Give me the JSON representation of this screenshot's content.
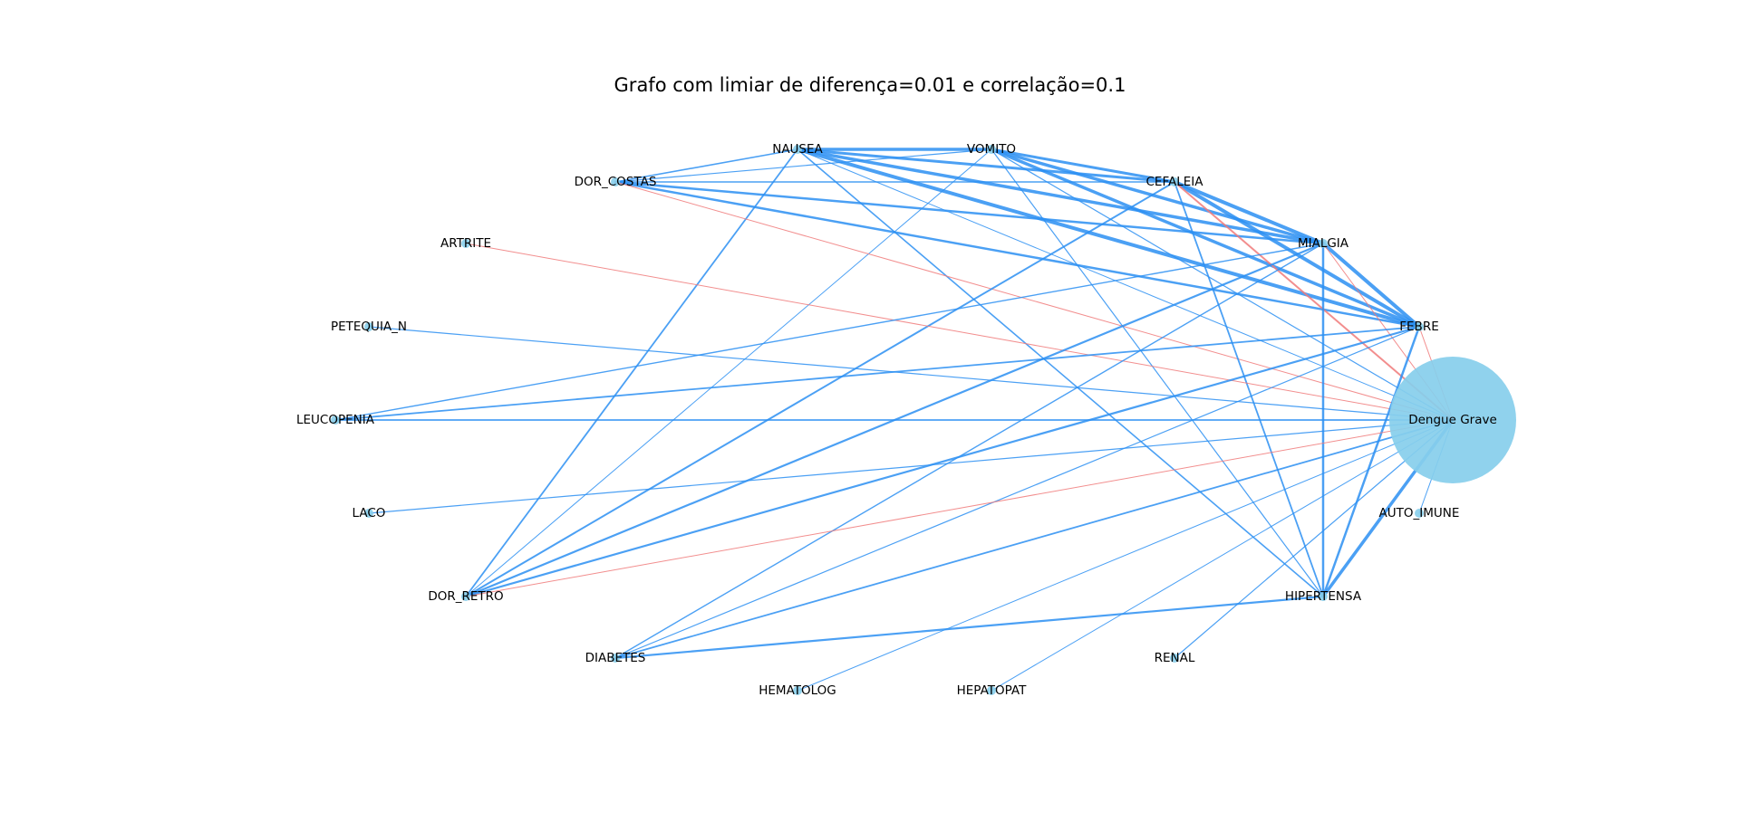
{
  "title": "Grafo com limiar de diferença=0.01 e correlação=0.1",
  "colors": {
    "positive_edge": "#2b8ff2",
    "negative_edge": "#f07a7a",
    "node": "#87ceeb"
  },
  "graph": {
    "center_node": "Dengue Grave",
    "nodes": [
      {
        "id": "NAUSEA",
        "label": "NAUSEA"
      },
      {
        "id": "VOMITO",
        "label": "VOMITO"
      },
      {
        "id": "DOR_COSTAS",
        "label": "DOR_COSTAS"
      },
      {
        "id": "CEFALEIA",
        "label": "CEFALEIA"
      },
      {
        "id": "ARTRITE",
        "label": "ARTRITE"
      },
      {
        "id": "MIALGIA",
        "label": "MIALGIA"
      },
      {
        "id": "PETEQUIA_N",
        "label": "PETEQUIA_N"
      },
      {
        "id": "FEBRE",
        "label": "FEBRE"
      },
      {
        "id": "LEUCOPENIA",
        "label": "LEUCOPENIA"
      },
      {
        "id": "Dengue Grave",
        "label": "Dengue Grave"
      },
      {
        "id": "LACO",
        "label": "LACO"
      },
      {
        "id": "AUTO_IMUNE",
        "label": "AUTO_IMUNE"
      },
      {
        "id": "DOR_RETRO",
        "label": "DOR_RETRO"
      },
      {
        "id": "HIPERTENSA",
        "label": "HIPERTENSA"
      },
      {
        "id": "DIABETES",
        "label": "DIABETES"
      },
      {
        "id": "RENAL",
        "label": "RENAL"
      },
      {
        "id": "HEMATOLOG",
        "label": "HEMATOLOG"
      },
      {
        "id": "HEPATOPAT",
        "label": "HEPATOPAT"
      }
    ],
    "edges": [
      {
        "source": "NAUSEA",
        "target": "VOMITO",
        "sign": "positive",
        "weight": 3.5
      },
      {
        "source": "NAUSEA",
        "target": "DOR_COSTAS",
        "sign": "positive",
        "weight": 1.6
      },
      {
        "source": "NAUSEA",
        "target": "CEFALEIA",
        "sign": "positive",
        "weight": 3
      },
      {
        "source": "NAUSEA",
        "target": "MIALGIA",
        "sign": "positive",
        "weight": 3.5
      },
      {
        "source": "NAUSEA",
        "target": "FEBRE",
        "sign": "positive",
        "weight": 4
      },
      {
        "source": "NAUSEA",
        "target": "DOR_RETRO",
        "sign": "positive",
        "weight": 1.8
      },
      {
        "source": "NAUSEA",
        "target": "HIPERTENSA",
        "sign": "positive",
        "weight": 1.6
      },
      {
        "source": "NAUSEA",
        "target": "Dengue Grave",
        "sign": "positive",
        "weight": 1
      },
      {
        "source": "VOMITO",
        "target": "DOR_COSTAS",
        "sign": "positive",
        "weight": 1.2
      },
      {
        "source": "VOMITO",
        "target": "CEFALEIA",
        "sign": "positive",
        "weight": 3
      },
      {
        "source": "VOMITO",
        "target": "MIALGIA",
        "sign": "positive",
        "weight": 3.5
      },
      {
        "source": "VOMITO",
        "target": "FEBRE",
        "sign": "positive",
        "weight": 3.5
      },
      {
        "source": "VOMITO",
        "target": "DOR_RETRO",
        "sign": "positive",
        "weight": 1
      },
      {
        "source": "VOMITO",
        "target": "HIPERTENSA",
        "sign": "positive",
        "weight": 1.2
      },
      {
        "source": "VOMITO",
        "target": "Dengue Grave",
        "sign": "positive",
        "weight": 1.2
      },
      {
        "source": "DOR_COSTAS",
        "target": "CEFALEIA",
        "sign": "positive",
        "weight": 1.6
      },
      {
        "source": "DOR_COSTAS",
        "target": "MIALGIA",
        "sign": "positive",
        "weight": 2.5
      },
      {
        "source": "DOR_COSTAS",
        "target": "FEBRE",
        "sign": "positive",
        "weight": 2.5
      },
      {
        "source": "DOR_COSTAS",
        "target": "Dengue Grave",
        "sign": "negative",
        "weight": 1
      },
      {
        "source": "CEFALEIA",
        "target": "MIALGIA",
        "sign": "positive",
        "weight": 4
      },
      {
        "source": "CEFALEIA",
        "target": "FEBRE",
        "sign": "positive",
        "weight": 4
      },
      {
        "source": "CEFALEIA",
        "target": "DOR_RETRO",
        "sign": "positive",
        "weight": 2
      },
      {
        "source": "CEFALEIA",
        "target": "HIPERTENSA",
        "sign": "positive",
        "weight": 1.8
      },
      {
        "source": "CEFALEIA",
        "target": "Dengue Grave",
        "sign": "negative",
        "weight": 2
      },
      {
        "source": "ARTRITE",
        "target": "Dengue Grave",
        "sign": "negative",
        "weight": 1
      },
      {
        "source": "MIALGIA",
        "target": "FEBRE",
        "sign": "positive",
        "weight": 4
      },
      {
        "source": "MIALGIA",
        "target": "LEUCOPENIA",
        "sign": "positive",
        "weight": 1.4
      },
      {
        "source": "MIALGIA",
        "target": "DOR_RETRO",
        "sign": "positive",
        "weight": 2.2
      },
      {
        "source": "MIALGIA",
        "target": "DIABETES",
        "sign": "positive",
        "weight": 1.4
      },
      {
        "source": "MIALGIA",
        "target": "HIPERTENSA",
        "sign": "positive",
        "weight": 2.5
      },
      {
        "source": "MIALGIA",
        "target": "Dengue Grave",
        "sign": "negative",
        "weight": 1
      },
      {
        "source": "PETEQUIA_N",
        "target": "Dengue Grave",
        "sign": "positive",
        "weight": 1.2
      },
      {
        "source": "FEBRE",
        "target": "LEUCOPENIA",
        "sign": "positive",
        "weight": 1.8
      },
      {
        "source": "FEBRE",
        "target": "DOR_RETRO",
        "sign": "positive",
        "weight": 2.2
      },
      {
        "source": "FEBRE",
        "target": "DIABETES",
        "sign": "positive",
        "weight": 1.2
      },
      {
        "source": "FEBRE",
        "target": "HIPERTENSA",
        "sign": "positive",
        "weight": 2.5
      },
      {
        "source": "FEBRE",
        "target": "Dengue Grave",
        "sign": "negative",
        "weight": 1
      },
      {
        "source": "LEUCOPENIA",
        "target": "Dengue Grave",
        "sign": "positive",
        "weight": 1.8
      },
      {
        "source": "LACO",
        "target": "Dengue Grave",
        "sign": "positive",
        "weight": 1.2
      },
      {
        "source": "AUTO_IMUNE",
        "target": "Dengue Grave",
        "sign": "positive",
        "weight": 1
      },
      {
        "source": "DOR_RETRO",
        "target": "Dengue Grave",
        "sign": "negative",
        "weight": 1
      },
      {
        "source": "HIPERTENSA",
        "target": "DIABETES",
        "sign": "positive",
        "weight": 2.2
      },
      {
        "source": "HIPERTENSA",
        "target": "Dengue Grave",
        "sign": "positive",
        "weight": 3.5
      },
      {
        "source": "DIABETES",
        "target": "Dengue Grave",
        "sign": "positive",
        "weight": 1.8
      },
      {
        "source": "RENAL",
        "target": "Dengue Grave",
        "sign": "positive",
        "weight": 1.2
      },
      {
        "source": "HEMATOLOG",
        "target": "Dengue Grave",
        "sign": "positive",
        "weight": 1
      },
      {
        "source": "HEPATOPAT",
        "target": "Dengue Grave",
        "sign": "positive",
        "weight": 1
      }
    ]
  }
}
